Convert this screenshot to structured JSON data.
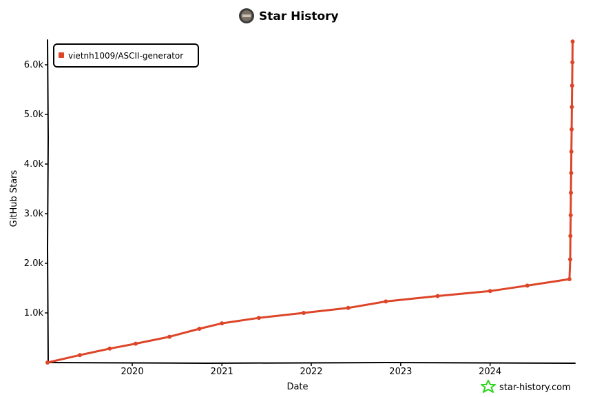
{
  "chart_data": {
    "type": "line",
    "title": "Star History",
    "xlabel": "Date",
    "ylabel": "GitHub Stars",
    "x_tick_labels": [
      "2020",
      "2021",
      "2022",
      "2023",
      "2024"
    ],
    "y_tick_labels": [
      "1.0k",
      "2.0k",
      "3.0k",
      "4.0k",
      "5.0k",
      "6.0k"
    ],
    "y_ticks": [
      1000,
      2000,
      3000,
      4000,
      5000,
      6000
    ],
    "xlim": [
      "2019-01-20",
      "2024-12-10"
    ],
    "ylim": [
      0,
      6500
    ],
    "grid": false,
    "legend_position": "top-left",
    "series": [
      {
        "name": "vietnh1009/ASCII-generator",
        "color": "#dd4528",
        "points": [
          {
            "x": "2019-01-20",
            "y": 0
          },
          {
            "x": "2019-06-01",
            "y": 150
          },
          {
            "x": "2019-10-01",
            "y": 280
          },
          {
            "x": "2020-01-15",
            "y": 380
          },
          {
            "x": "2020-06-01",
            "y": 520
          },
          {
            "x": "2020-10-01",
            "y": 680
          },
          {
            "x": "2021-01-01",
            "y": 790
          },
          {
            "x": "2021-06-01",
            "y": 900
          },
          {
            "x": "2021-12-01",
            "y": 1000
          },
          {
            "x": "2022-06-01",
            "y": 1100
          },
          {
            "x": "2022-11-01",
            "y": 1230
          },
          {
            "x": "2023-06-01",
            "y": 1340
          },
          {
            "x": "2024-01-01",
            "y": 1440
          },
          {
            "x": "2024-06-01",
            "y": 1550
          },
          {
            "x": "2024-11-20",
            "y": 1680
          },
          {
            "x": "2024-11-23",
            "y": 2080
          },
          {
            "x": "2024-11-24",
            "y": 2550
          },
          {
            "x": "2024-11-25",
            "y": 2970
          },
          {
            "x": "2024-11-26",
            "y": 3420
          },
          {
            "x": "2024-11-27",
            "y": 3820
          },
          {
            "x": "2024-11-28",
            "y": 4250
          },
          {
            "x": "2024-11-29",
            "y": 4700
          },
          {
            "x": "2024-11-30",
            "y": 5150
          },
          {
            "x": "2024-12-01",
            "y": 5580
          },
          {
            "x": "2024-12-02",
            "y": 6050
          },
          {
            "x": "2024-12-03",
            "y": 6470
          }
        ]
      }
    ]
  },
  "brand": {
    "text": "star-history.com",
    "icon": "star-icon",
    "icon_color": "#2bd61c"
  },
  "title_icon": "avatar-icon"
}
